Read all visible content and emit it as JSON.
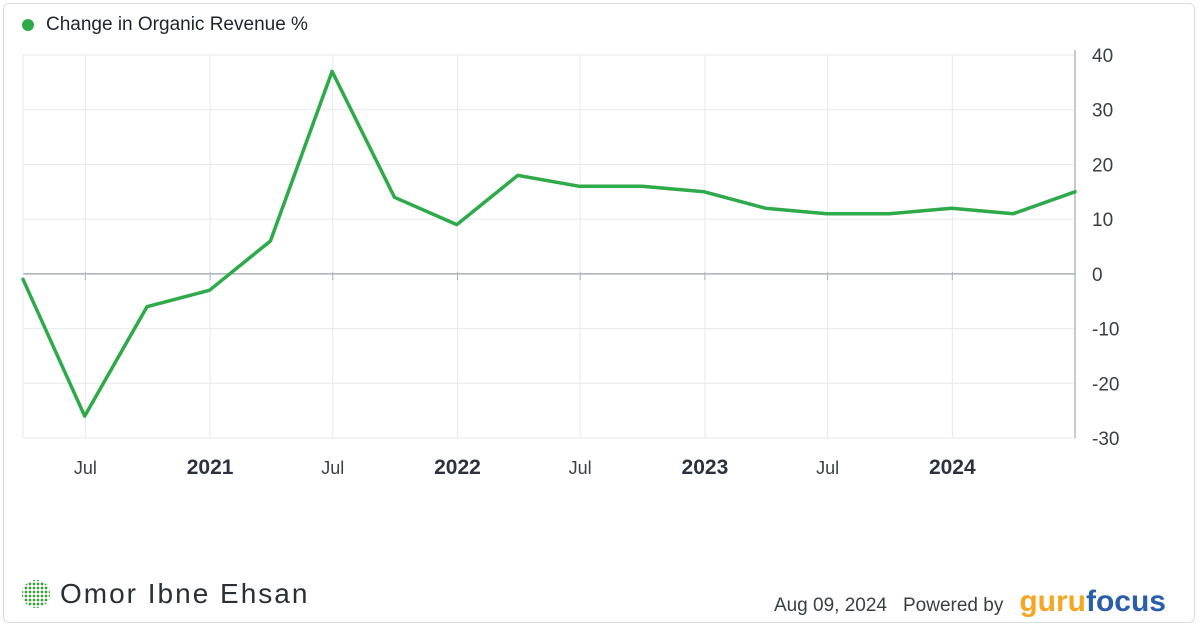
{
  "legend": {
    "label": "Change in Organic Revenue %",
    "color": "#2eaa4a"
  },
  "chart_data": {
    "type": "line",
    "series": [
      {
        "name": "Change in Organic Revenue %",
        "color": "#2eaa4a",
        "points": [
          {
            "x": "2020-03-31",
            "y": -1
          },
          {
            "x": "2020-06-30",
            "y": -26
          },
          {
            "x": "2020-09-30",
            "y": -6
          },
          {
            "x": "2020-12-31",
            "y": -3
          },
          {
            "x": "2021-03-31",
            "y": 6
          },
          {
            "x": "2021-06-30",
            "y": 37
          },
          {
            "x": "2021-09-30",
            "y": 14
          },
          {
            "x": "2021-12-31",
            "y": 9
          },
          {
            "x": "2022-03-31",
            "y": 18
          },
          {
            "x": "2022-06-30",
            "y": 16
          },
          {
            "x": "2022-09-30",
            "y": 16
          },
          {
            "x": "2022-12-31",
            "y": 15
          },
          {
            "x": "2023-03-31",
            "y": 12
          },
          {
            "x": "2023-06-30",
            "y": 11
          },
          {
            "x": "2023-09-30",
            "y": 11
          },
          {
            "x": "2023-12-31",
            "y": 12
          },
          {
            "x": "2024-03-31",
            "y": 11
          },
          {
            "x": "2024-06-30",
            "y": 15
          }
        ]
      }
    ],
    "xlim": [
      "2020-03-31",
      "2024-06-30"
    ],
    "ylim": [
      -30,
      40
    ],
    "y_ticks": [
      40,
      30,
      20,
      10,
      0,
      -10,
      -20,
      -30
    ],
    "x_ticks": [
      {
        "label": "Jul",
        "x": "2020-07-01",
        "bold": false
      },
      {
        "label": "2021",
        "x": "2021-01-01",
        "bold": true
      },
      {
        "label": "Jul",
        "x": "2021-07-01",
        "bold": false
      },
      {
        "label": "2022",
        "x": "2022-01-01",
        "bold": true
      },
      {
        "label": "Jul",
        "x": "2022-07-01",
        "bold": false
      },
      {
        "label": "2023",
        "x": "2023-01-01",
        "bold": true
      },
      {
        "label": "Jul",
        "x": "2023-07-01",
        "bold": false
      },
      {
        "label": "2024",
        "x": "2024-01-01",
        "bold": true
      }
    ],
    "y_axis_side": "right",
    "grid": true
  },
  "footer": {
    "author": "Omor Ibne Ehsan",
    "date": "Aug 09, 2024",
    "powered_by": "Powered by",
    "brand_part1": "guru",
    "brand_part2": "focus"
  }
}
